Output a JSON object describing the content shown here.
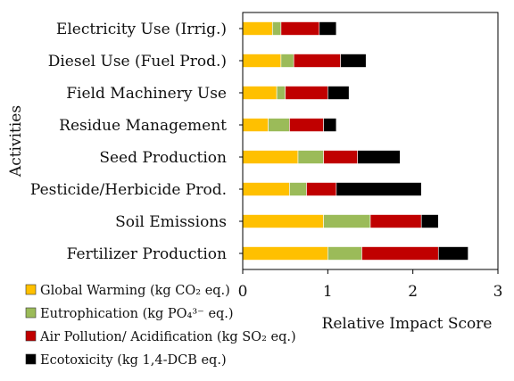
{
  "chart_data": {
    "type": "bar",
    "orientation": "horizontal",
    "stacked": true,
    "title": "",
    "ylabel": "Activities",
    "xlabel": "Relative Impact Score",
    "xlim": [
      0,
      3
    ],
    "xticks": [
      "0",
      "1",
      "2",
      "3"
    ],
    "grid": false,
    "legend_position": "bottom-left",
    "categories": [
      "Electricity Use (Irrig.)",
      "Diesel Use (Fuel Prod.)",
      "Field Machinery Use",
      "Residue Management",
      "Seed Production",
      "Pesticide/Herbicide Prod.",
      "Soil Emissions",
      "Fertilizer Production"
    ],
    "series": [
      {
        "name": "Global Warming (kg CO₂ eq.)",
        "color": "#FFC000",
        "values": [
          0.35,
          0.45,
          0.4,
          0.3,
          0.65,
          0.55,
          0.95,
          1.0
        ]
      },
      {
        "name": "Eutrophication (kg PO₄³⁻ eq.)",
        "color": "#9BBB59",
        "values": [
          0.1,
          0.15,
          0.1,
          0.25,
          0.3,
          0.2,
          0.55,
          0.4
        ]
      },
      {
        "name": "Air Pollution/ Acidification (kg SO₂ eq.)",
        "color": "#C00000",
        "values": [
          0.45,
          0.55,
          0.5,
          0.4,
          0.4,
          0.35,
          0.6,
          0.9
        ]
      },
      {
        "name": "Ecotoxicity (kg 1,4-DCB eq.)",
        "color": "#000000",
        "values": [
          0.2,
          0.3,
          0.25,
          0.15,
          0.5,
          1.0,
          0.2,
          0.35
        ]
      }
    ]
  }
}
